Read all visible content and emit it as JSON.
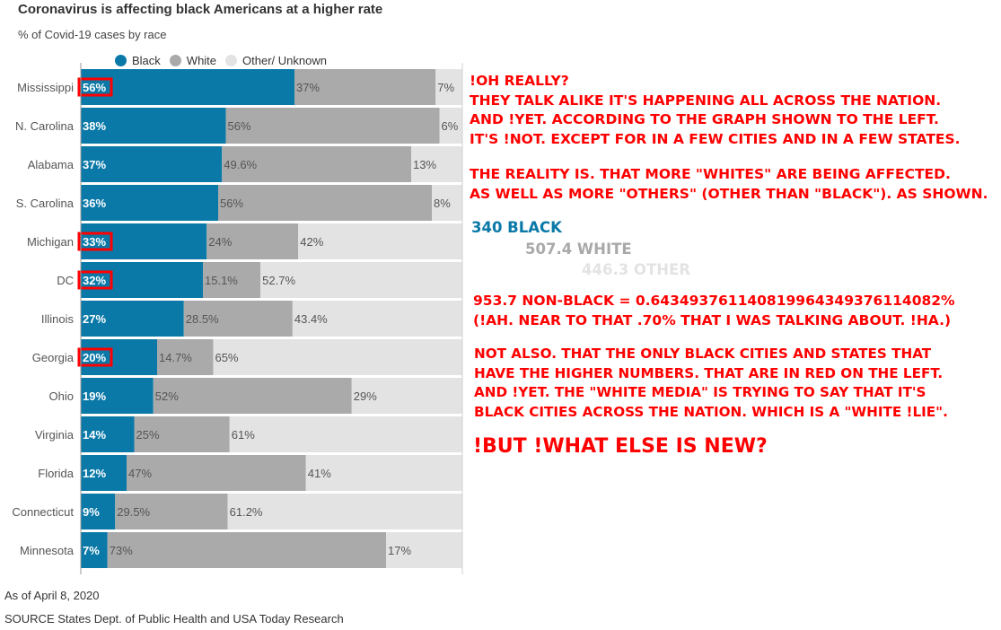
{
  "colors": {
    "black": "#0a79a8",
    "white": "#aaaaaa",
    "other": "#e3e3e3",
    "highlight": "#ff0000",
    "note": "#ff0000",
    "stat_black": "#0a79a8",
    "stat_white": "#a9a9a9",
    "stat_other": "#e3e3e3"
  },
  "chart_data": {
    "type": "bar",
    "orientation": "horizontal",
    "stacked": true,
    "title": "Coronavirus is affecting black Americans at a higher rate",
    "subtitle": "% of Covid-19 cases  by race",
    "categories": [
      "Mississippi",
      "N. Carolina",
      "Alabama",
      "S. Carolina",
      "Michigan",
      "DC",
      "Illinois",
      "Georgia",
      "Ohio",
      "Virginia",
      "Florida",
      "Connecticut",
      "Minnesota"
    ],
    "series": [
      {
        "name": "Black",
        "values": [
          56,
          38,
          37,
          36,
          33,
          32,
          27,
          20,
          19,
          14,
          12,
          9,
          7
        ],
        "labels": [
          "56%",
          "38%",
          "37%",
          "36%",
          "33%",
          "32%",
          "27%",
          "20%",
          "19%",
          "14%",
          "12%",
          "9%",
          "7%"
        ]
      },
      {
        "name": "White",
        "values": [
          37,
          56,
          49.6,
          56,
          24,
          15.1,
          28.5,
          14.7,
          52,
          25,
          47,
          29.5,
          73
        ],
        "labels": [
          "37%",
          "56%",
          "49.6%",
          "56%",
          "24%",
          "15.1%",
          "28.5%",
          "14.7%",
          "52%",
          "25%",
          "47%",
          "29.5%",
          "73%"
        ]
      },
      {
        "name": "Other/ Unknown",
        "values": [
          7,
          6,
          13,
          8,
          42,
          52.7,
          43.4,
          65,
          29,
          61,
          41,
          61.2,
          17
        ],
        "labels": [
          "7%",
          "6%",
          "13%",
          "8%",
          "42%",
          "52.7%",
          "43.4%",
          "65%",
          "29%",
          "61%",
          "41%",
          "61.2%",
          "17%"
        ]
      }
    ],
    "highlighted": [
      "Mississippi",
      "Michigan",
      "DC",
      "Georgia"
    ],
    "xlim": [
      0,
      100
    ],
    "legend": "top",
    "grid": false
  },
  "legend_labels": [
    "Black",
    "White",
    "Other/ Unknown"
  ],
  "footer": {
    "date": "As of April 8, 2020",
    "source": "SOURCE States Dept. of Public Health and USA Today Research"
  },
  "annotation": {
    "block1": "!OH REALLY?\nTHEY TALK ALIKE IT'S HAPPENING ALL ACROSS THE NATION.\nAND !YET. ACCORDING TO THE GRAPH SHOWN TO THE LEFT.\nIT'S !NOT. EXCEPT FOR IN A FEW CITIES AND IN A FEW STATES.",
    "block2": "THE REALITY IS. THAT MORE \"WHITES\" ARE BEING AFFECTED.\nAS WELL AS MORE \"OTHERS\" (OTHER THAN \"BLACK\"). AS SHOWN.",
    "stat_black": "340 BLACK",
    "stat_white": "507.4 WHITE",
    "stat_other": "446.3 OTHER",
    "block3": "953.7 NON-BLACK = 0.64349376114081996434937611 4082%",
    "block3_line1": "953.7 NON-BLACK = 0.643493761140819964349376114082%",
    "block3_line2": "(!AH. NEAR TO THAT .70% THAT I WAS TALKING ABOUT. !HA.)",
    "block4": "NOT ALSO. THAT THE ONLY BLACK CITIES AND STATES THAT\nHAVE THE HIGHER NUMBERS. THAT ARE IN RED ON THE LEFT.\nAND !YET. THE \"WHITE MEDIA\" IS TRYING TO SAY THAT IT'S\nBLACK CITIES ACROSS THE NATION. WHICH IS A \"WHITE !LIE\".",
    "closing": "!BUT !WHAT ELSE IS NEW?"
  }
}
